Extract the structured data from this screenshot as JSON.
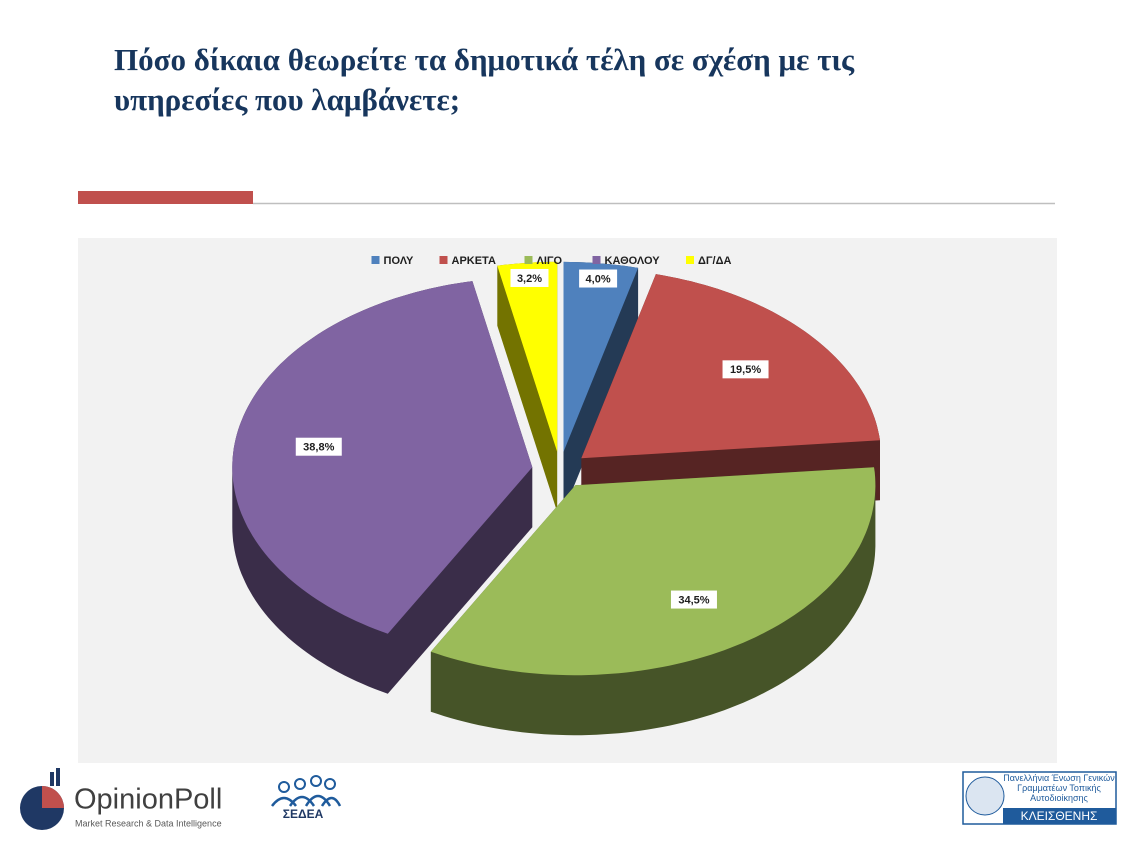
{
  "chart_data": {
    "type": "pie",
    "title": "Πόσο δίκαια θεωρείτε τα δημοτικά τέλη σε σχέση με τις υπηρεσίες που λαμβάνετε;",
    "categories": [
      "ΠΟΛΥ",
      "ΑΡΚΕΤΑ",
      "ΛΙΓΟ",
      "ΚΑΘΟΛΟΥ",
      "ΔΓ/ΔΑ"
    ],
    "values": [
      4.0,
      19.5,
      34.5,
      38.8,
      3.2
    ],
    "value_labels": [
      "4,0%",
      "19,5%",
      "34,5%",
      "38,8%",
      "3,2%"
    ],
    "colors": [
      "#4f81bd",
      "#c0504d",
      "#9bbb59",
      "#8064a2",
      "#ffff00"
    ],
    "legend": "top"
  },
  "footer": {
    "left_logo": {
      "name": "OpinionPoll",
      "tagline": "Market Research & Data Intelligence"
    },
    "middle_logo": "ΣΕΔΕΑ",
    "right_logo": {
      "text": "Πανελλήνια Ένωση Γενικών Γραμματέων Τοπικής Αυτοδιοίκησης",
      "name": "ΚΛΕΙΣΘΕΝΗΣ"
    }
  }
}
